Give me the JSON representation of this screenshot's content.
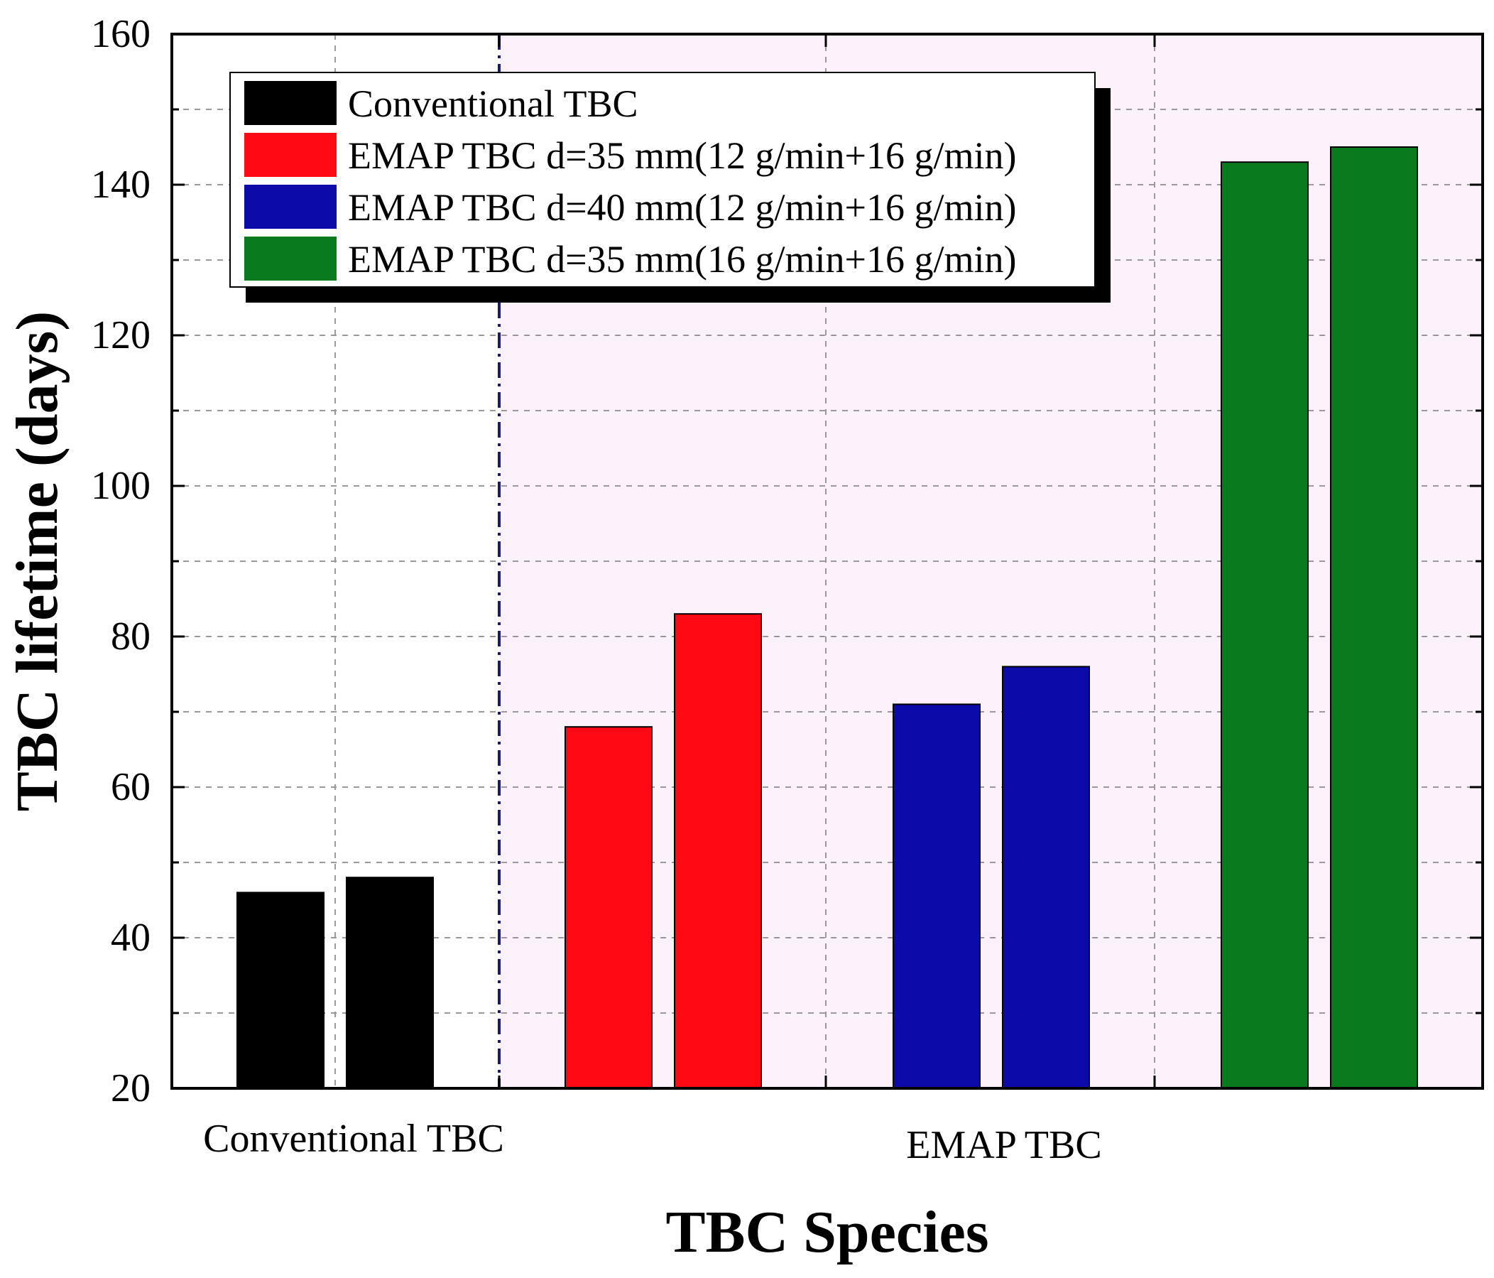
{
  "chart_data": {
    "type": "bar",
    "title": "",
    "xlabel": "TBC Species",
    "ylabel": "TBC lifetime (days)",
    "ylim": [
      20,
      160
    ],
    "yticks": [
      20,
      40,
      60,
      80,
      100,
      120,
      140,
      160
    ],
    "grid": true,
    "legend_position": "top-left",
    "background": "#fdf2fb",
    "categories": [
      "Conventional TBC",
      "EMAP TBC"
    ],
    "series": [
      {
        "name": "Conventional TBC",
        "color": "#000000",
        "values": [
          46,
          48
        ]
      },
      {
        "name": "EMAP TBC d=35 mm(12 g/min+16 g/min)",
        "color": "#ff0a14",
        "values": [
          68,
          83
        ]
      },
      {
        "name": "EMAP TBC d=40 mm(12 g/min+16 g/min)",
        "color": "#0c0aa8",
        "values": [
          71,
          76
        ]
      },
      {
        "name": "EMAP TBC d=35 mm(16 g/min+16 g/min)",
        "color": "#0a7a1e",
        "values": [
          143,
          145
        ]
      }
    ],
    "divider_color": "#1a1a6e"
  }
}
